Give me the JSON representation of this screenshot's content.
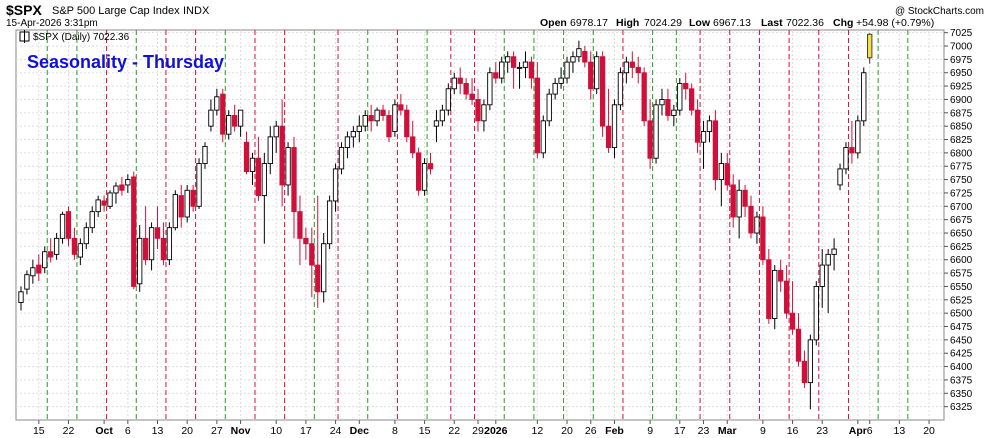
{
  "header": {
    "symbol": "$SPX",
    "name": "S&P 500 Large Cap Index",
    "exchange": "INDX",
    "datetime": "15-Apr-2026 3:31pm",
    "copyright": "@ StockCharts.com",
    "open_label": "Open",
    "open": "6978.17",
    "high_label": "High",
    "high": "7024.29",
    "low_label": "Low",
    "low": "6967.13",
    "last_label": "Last",
    "last": "7022.36",
    "chg_label": "Chg",
    "chg": "+54.98 (+0.79%)"
  },
  "legend": {
    "label": "$SPX (Daily) 7022.36"
  },
  "colors": {
    "up": "#000000",
    "down": "#d0103a",
    "last": "#f0e040",
    "green_line": "#22a022",
    "red_line": "#d0103a",
    "grid": "#dddddd",
    "title": "#1010dd"
  },
  "chart_data": {
    "type": "candlestick",
    "title": "Seasonality - Thursday",
    "y_range": [
      6300,
      7030
    ],
    "y_ticks": [
      6325,
      6350,
      6375,
      6400,
      6425,
      6450,
      6475,
      6500,
      6525,
      6550,
      6575,
      6600,
      6625,
      6650,
      6675,
      6700,
      6725,
      6750,
      6775,
      6800,
      6825,
      6850,
      6875,
      6900,
      6925,
      6950,
      6975,
      7000,
      7025
    ],
    "x_labels": [
      {
        "label": "15",
        "i": 3
      },
      {
        "label": "22",
        "i": 8
      },
      {
        "label": "Oct",
        "i": 14
      },
      {
        "label": "6",
        "i": 18
      },
      {
        "label": "13",
        "i": 23
      },
      {
        "label": "20",
        "i": 28
      },
      {
        "label": "27",
        "i": 33
      },
      {
        "label": "Nov",
        "i": 37
      },
      {
        "label": "10",
        "i": 43
      },
      {
        "label": "17",
        "i": 48
      },
      {
        "label": "24",
        "i": 53
      },
      {
        "label": "Dec",
        "i": 57
      },
      {
        "label": "8",
        "i": 63
      },
      {
        "label": "15",
        "i": 68
      },
      {
        "label": "22",
        "i": 73
      },
      {
        "label": "29",
        "i": 77
      },
      {
        "label": "2026",
        "i": 80
      },
      {
        "label": "12",
        "i": 87
      },
      {
        "label": "20",
        "i": 92
      },
      {
        "label": "26",
        "i": 96
      },
      {
        "label": "Feb",
        "i": 100
      },
      {
        "label": "9",
        "i": 106
      },
      {
        "label": "17",
        "i": 111
      },
      {
        "label": "23",
        "i": 115
      },
      {
        "label": "Mar",
        "i": 119
      },
      {
        "label": "9",
        "i": 125
      },
      {
        "label": "16",
        "i": 130
      },
      {
        "label": "23",
        "i": 135
      },
      {
        "label": "Apr",
        "i": 141
      },
      {
        "label": "6",
        "i": 143
      },
      {
        "label": "13",
        "i": 148
      },
      {
        "label": "20",
        "i": 153
      }
    ],
    "thursday_lines": [
      {
        "i": 4,
        "type": "green"
      },
      {
        "i": 9,
        "type": "green"
      },
      {
        "i": 14,
        "type": "red"
      },
      {
        "i": 19,
        "type": "green"
      },
      {
        "i": 24,
        "type": "red"
      },
      {
        "i": 29,
        "type": "red"
      },
      {
        "i": 34,
        "type": "green"
      },
      {
        "i": 39,
        "type": "red"
      },
      {
        "i": 44,
        "type": "red"
      },
      {
        "i": 49,
        "type": "green"
      },
      {
        "i": 53,
        "type": "red"
      },
      {
        "i": 58,
        "type": "green"
      },
      {
        "i": 63,
        "type": "red"
      },
      {
        "i": 68,
        "type": "green"
      },
      {
        "i": 72,
        "type": "red"
      },
      {
        "i": 76,
        "type": "red"
      },
      {
        "i": 81,
        "type": "green"
      },
      {
        "i": 86,
        "type": "green"
      },
      {
        "i": 91,
        "type": "green"
      },
      {
        "i": 96,
        "type": "green"
      },
      {
        "i": 101,
        "type": "red"
      },
      {
        "i": 106,
        "type": "green"
      },
      {
        "i": 110,
        "type": "green"
      },
      {
        "i": 114,
        "type": "red"
      },
      {
        "i": 119,
        "type": "red"
      },
      {
        "i": 124,
        "type": "red"
      },
      {
        "i": 129,
        "type": "red"
      },
      {
        "i": 134,
        "type": "red"
      },
      {
        "i": 139,
        "type": "red"
      },
      {
        "i": 144,
        "type": "green"
      },
      {
        "i": 149,
        "type": "green"
      }
    ],
    "candles": [
      [
        6520,
        6550,
        6505,
        6540
      ],
      [
        6545,
        6580,
        6535,
        6572
      ],
      [
        6570,
        6600,
        6555,
        6585
      ],
      [
        6590,
        6610,
        6560,
        6575
      ],
      [
        6585,
        6625,
        6575,
        6615
      ],
      [
        6615,
        6640,
        6595,
        6605
      ],
      [
        6610,
        6650,
        6600,
        6640
      ],
      [
        6640,
        6690,
        6630,
        6685
      ],
      [
        6690,
        6700,
        6625,
        6640
      ],
      [
        6640,
        6660,
        6600,
        6610
      ],
      [
        6605,
        6640,
        6590,
        6630
      ],
      [
        6630,
        6670,
        6620,
        6660
      ],
      [
        6660,
        6700,
        6650,
        6690
      ],
      [
        6690,
        6720,
        6680,
        6712
      ],
      [
        6710,
        6720,
        6690,
        6702
      ],
      [
        6700,
        6730,
        6695,
        6725
      ],
      [
        6725,
        6745,
        6705,
        6738
      ],
      [
        6740,
        6755,
        6720,
        6730
      ],
      [
        6740,
        6760,
        6725,
        6750
      ],
      [
        6755,
        6765,
        6545,
        6550
      ],
      [
        6555,
        6665,
        6540,
        6640
      ],
      [
        6640,
        6700,
        6590,
        6600
      ],
      [
        6600,
        6670,
        6580,
        6660
      ],
      [
        6660,
        6700,
        6620,
        6640
      ],
      [
        6640,
        6670,
        6590,
        6600
      ],
      [
        6600,
        6670,
        6590,
        6660
      ],
      [
        6660,
        6730,
        6655,
        6722
      ],
      [
        6720,
        6740,
        6660,
        6680
      ],
      [
        6680,
        6740,
        6670,
        6730
      ],
      [
        6730,
        6740,
        6690,
        6700
      ],
      [
        6700,
        6790,
        6695,
        6780
      ],
      [
        6780,
        6820,
        6770,
        6812
      ],
      [
        6850,
        6900,
        6840,
        6880
      ],
      [
        6880,
        6920,
        6870,
        6905
      ],
      [
        6910,
        6920,
        6820,
        6835
      ],
      [
        6835,
        6880,
        6825,
        6870
      ],
      [
        6870,
        6890,
        6840,
        6850
      ],
      [
        6850,
        6880,
        6830,
        6880
      ],
      [
        6820,
        6840,
        6760,
        6765
      ],
      [
        6765,
        6800,
        6740,
        6790
      ],
      [
        6790,
        6830,
        6710,
        6720
      ],
      [
        6720,
        6800,
        6630,
        6780
      ],
      [
        6780,
        6850,
        6760,
        6830
      ],
      [
        6830,
        6860,
        6800,
        6850
      ],
      [
        6850,
        6900,
        6700,
        6740
      ],
      [
        6740,
        6820,
        6720,
        6810
      ],
      [
        6810,
        6830,
        6640,
        6690
      ],
      [
        6690,
        6720,
        6590,
        6640
      ],
      [
        6640,
        6660,
        6600,
        6630
      ],
      [
        6630,
        6660,
        6530,
        6590
      ],
      [
        6590,
        6720,
        6510,
        6540
      ],
      [
        6540,
        6650,
        6520,
        6630
      ],
      [
        6630,
        6720,
        6620,
        6710
      ],
      [
        6710,
        6780,
        6690,
        6770
      ],
      [
        6770,
        6820,
        6760,
        6810
      ],
      [
        6810,
        6840,
        6790,
        6830
      ],
      [
        6830,
        6850,
        6810,
        6840
      ],
      [
        6840,
        6870,
        6820,
        6850
      ],
      [
        6850,
        6880,
        6840,
        6870
      ],
      [
        6870,
        6890,
        6840,
        6860
      ],
      [
        6860,
        6885,
        6850,
        6880
      ],
      [
        6880,
        6890,
        6860,
        6870
      ],
      [
        6870,
        6880,
        6820,
        6830
      ],
      [
        6840,
        6900,
        6830,
        6890
      ],
      [
        6890,
        6910,
        6870,
        6880
      ],
      [
        6880,
        6890,
        6820,
        6830
      ],
      [
        6830,
        6860,
        6790,
        6800
      ],
      [
        6800,
        6810,
        6720,
        6730
      ],
      [
        6730,
        6790,
        6720,
        6780
      ],
      [
        6780,
        6800,
        6760,
        6770
      ],
      [
        6850,
        6880,
        6820,
        6860
      ],
      [
        6860,
        6890,
        6850,
        6880
      ],
      [
        6880,
        6930,
        6870,
        6920
      ],
      [
        6920,
        6950,
        6910,
        6940
      ],
      [
        6940,
        6960,
        6910,
        6930
      ],
      [
        6930,
        6940,
        6900,
        6910
      ],
      [
        6910,
        6940,
        6890,
        6900
      ],
      [
        6900,
        6920,
        6840,
        6860
      ],
      [
        6860,
        6900,
        6840,
        6890
      ],
      [
        6890,
        6960,
        6880,
        6950
      ],
      [
        6950,
        6970,
        6930,
        6940
      ],
      [
        6940,
        6980,
        6930,
        6970
      ],
      [
        6970,
        6990,
        6950,
        6980
      ],
      [
        6980,
        6990,
        6920,
        6960
      ],
      [
        6960,
        6970,
        6920,
        6960
      ],
      [
        6960,
        6990,
        6940,
        6970
      ],
      [
        6970,
        6980,
        6920,
        6940
      ],
      [
        6940,
        6970,
        6790,
        6800
      ],
      [
        6800,
        6870,
        6790,
        6860
      ],
      [
        6860,
        6920,
        6850,
        6910
      ],
      [
        6910,
        6940,
        6900,
        6930
      ],
      [
        6930,
        6960,
        6920,
        6940
      ],
      [
        6940,
        6980,
        6930,
        6970
      ],
      [
        6970,
        6990,
        6950,
        6980
      ],
      [
        6980,
        7010,
        6970,
        6995
      ],
      [
        6990,
        7000,
        6960,
        6970
      ],
      [
        6970,
        6990,
        6900,
        6920
      ],
      [
        6920,
        6990,
        6910,
        6980
      ],
      [
        6980,
        6990,
        6830,
        6850
      ],
      [
        6850,
        6920,
        6800,
        6810
      ],
      [
        6810,
        6900,
        6790,
        6890
      ],
      [
        6890,
        6960,
        6880,
        6950
      ],
      [
        6950,
        6980,
        6930,
        6970
      ],
      [
        6970,
        6990,
        6940,
        6960
      ],
      [
        6960,
        6980,
        6930,
        6950
      ],
      [
        6950,
        6960,
        6850,
        6860
      ],
      [
        6860,
        6900,
        6770,
        6790
      ],
      [
        6790,
        6900,
        6780,
        6890
      ],
      [
        6890,
        6920,
        6870,
        6900
      ],
      [
        6900,
        6920,
        6860,
        6870
      ],
      [
        6870,
        6890,
        6850,
        6880
      ],
      [
        6880,
        6940,
        6870,
        6930
      ],
      [
        6930,
        6950,
        6900,
        6920
      ],
      [
        6920,
        6930,
        6870,
        6880
      ],
      [
        6880,
        6900,
        6800,
        6820
      ],
      [
        6820,
        6860,
        6770,
        6840
      ],
      [
        6840,
        6870,
        6820,
        6860
      ],
      [
        6860,
        6880,
        6730,
        6750
      ],
      [
        6750,
        6800,
        6700,
        6780
      ],
      [
        6780,
        6800,
        6730,
        6740
      ],
      [
        6740,
        6760,
        6660,
        6680
      ],
      [
        6680,
        6750,
        6640,
        6730
      ],
      [
        6730,
        6740,
        6680,
        6700
      ],
      [
        6700,
        6720,
        6640,
        6650
      ],
      [
        6650,
        6690,
        6630,
        6680
      ],
      [
        6680,
        6700,
        6590,
        6600
      ],
      [
        6600,
        6620,
        6480,
        6490
      ],
      [
        6490,
        6590,
        6470,
        6580
      ],
      [
        6580,
        6600,
        6540,
        6560
      ],
      [
        6560,
        6590,
        6490,
        6500
      ],
      [
        6500,
        6560,
        6460,
        6470
      ],
      [
        6470,
        6500,
        6400,
        6410
      ],
      [
        6410,
        6430,
        6360,
        6370
      ],
      [
        6370,
        6460,
        6320,
        6450
      ],
      [
        6450,
        6560,
        6440,
        6550
      ],
      [
        6550,
        6620,
        6510,
        6590
      ],
      [
        6590,
        6620,
        6500,
        6610
      ],
      [
        6610,
        6640,
        6580,
        6620
      ],
      [
        6740,
        6780,
        6730,
        6770
      ],
      [
        6770,
        6820,
        6760,
        6810
      ],
      [
        6810,
        6860,
        6780,
        6800
      ],
      [
        6800,
        6870,
        6790,
        6860
      ],
      [
        6860,
        6960,
        6850,
        6950
      ],
      [
        6978,
        7024,
        6967,
        7022
      ]
    ]
  }
}
